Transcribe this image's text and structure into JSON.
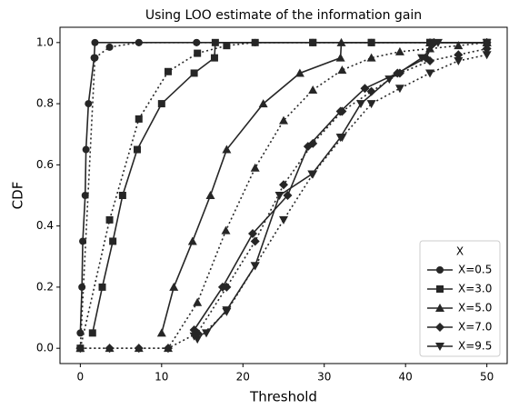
{
  "chart_data": {
    "type": "line",
    "title": "Using LOO estimate of the information gain",
    "x_label": "Threshold",
    "y_label": "CDF",
    "xlim": [
      -2.5,
      52.5
    ],
    "xticks": [
      0,
      10,
      20,
      30,
      40,
      50
    ],
    "ylim": [
      -0.05,
      1.05
    ],
    "yticks": [
      {
        "value": 0,
        "label": "0.0"
      },
      0.2,
      0.4,
      0.6,
      0.8,
      {
        "value": 1,
        "label": "1.0"
      }
    ],
    "legend_title": "X",
    "legend_position": "lower right",
    "series": [
      {
        "name": "X=0.5",
        "color": "#262626",
        "marker": "circle",
        "x": [
          0,
          0.2,
          0.3,
          0.6,
          0.7,
          1.0,
          1.7,
          1.8,
          7.2,
          14.3,
          21.5,
          28.6,
          35.8,
          43,
          50
        ],
        "values": [
          0.05,
          0.2,
          0.35,
          0.5,
          0.65,
          0.8,
          0.95,
          1.0,
          1.0,
          1.0,
          1.0,
          1.0,
          1.0,
          1.0,
          1.0
        ],
        "dotted": {
          "x": [
            0,
            1.8,
            3.6,
            7.2,
            14.3,
            21.5,
            28.6,
            35.8,
            43,
            50
          ],
          "values": [
            0,
            0.95,
            0.985,
            1.0,
            1.0,
            1.0,
            1.0,
            1.0,
            1.0,
            1.0
          ]
        }
      },
      {
        "name": "X=3.0",
        "color": "#262626",
        "marker": "square",
        "x": [
          1.5,
          2.7,
          4.0,
          5.2,
          7.0,
          10.0,
          14.0,
          16.5,
          16.6,
          28.6,
          35.8,
          43,
          50
        ],
        "values": [
          0.05,
          0.2,
          0.35,
          0.5,
          0.65,
          0.8,
          0.9,
          0.95,
          1.0,
          1.0,
          1.0,
          1.0,
          1.0
        ],
        "dotted": {
          "x": [
            0,
            3.6,
            7.2,
            10.8,
            14.4,
            18,
            21.5,
            28.6,
            35.8,
            43,
            50
          ],
          "values": [
            0,
            0.42,
            0.75,
            0.905,
            0.965,
            0.99,
            1.0,
            1.0,
            1.0,
            1.0,
            1.0
          ]
        }
      },
      {
        "name": "X=5.0",
        "color": "#262626",
        "marker": "triangle-up",
        "x": [
          10,
          11.5,
          13.8,
          16,
          18,
          22.5,
          27,
          32,
          32.1,
          43,
          50
        ],
        "values": [
          0.05,
          0.2,
          0.35,
          0.5,
          0.65,
          0.8,
          0.9,
          0.95,
          1.0,
          1.0,
          1.0
        ],
        "dotted": {
          "x": [
            0,
            3.6,
            7.2,
            10.8,
            14.4,
            17.9,
            21.5,
            25,
            28.6,
            32.2,
            35.8,
            39.3,
            43,
            46.5,
            50
          ],
          "values": [
            0,
            0,
            0,
            0,
            0.15,
            0.385,
            0.59,
            0.745,
            0.845,
            0.91,
            0.95,
            0.97,
            0.98,
            0.99,
            1.0
          ]
        }
      },
      {
        "name": "X=7.0",
        "color": "#262626",
        "marker": "diamond",
        "x": [
          14,
          17.5,
          21.2,
          25.5,
          28,
          32,
          35,
          39,
          42.5,
          43.5,
          50
        ],
        "values": [
          0.06,
          0.2,
          0.375,
          0.5,
          0.66,
          0.775,
          0.85,
          0.9,
          0.95,
          1.0,
          1.0
        ],
        "dotted": {
          "x": [
            0,
            3.6,
            7.2,
            10.8,
            14.4,
            18,
            21.5,
            25,
            28.6,
            32.2,
            35.8,
            39.3,
            43,
            46.5,
            50
          ],
          "values": [
            0,
            0,
            0,
            0,
            0.05,
            0.2,
            0.35,
            0.535,
            0.67,
            0.775,
            0.84,
            0.9,
            0.94,
            0.96,
            0.98
          ]
        }
      },
      {
        "name": "X=9.5",
        "color": "#262626",
        "marker": "triangle-down",
        "x": [
          14,
          15.5,
          18,
          21.5,
          24.5,
          28.5,
          32,
          34.5,
          38,
          42,
          44,
          50
        ],
        "values": [
          0.04,
          0.05,
          0.125,
          0.27,
          0.5,
          0.57,
          0.69,
          0.8,
          0.88,
          0.95,
          1.0,
          1.0
        ],
        "dotted": {
          "x": [
            14.4,
            18,
            21.5,
            25,
            28.6,
            32.2,
            35.8,
            39.3,
            43,
            46.5,
            50
          ],
          "values": [
            0.03,
            0.12,
            0.27,
            0.42,
            0.57,
            0.69,
            0.8,
            0.85,
            0.9,
            0.94,
            0.96
          ]
        }
      }
    ]
  }
}
